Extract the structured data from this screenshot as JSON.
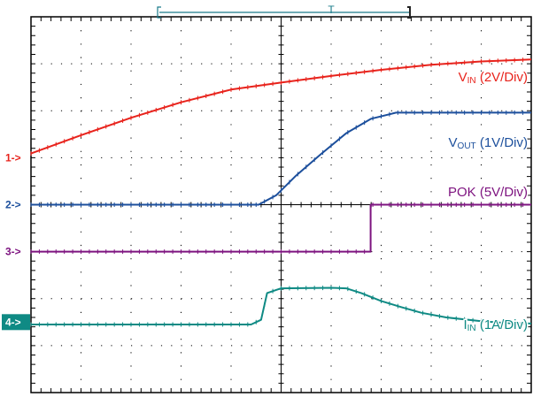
{
  "chart_data": {
    "type": "line",
    "title": "",
    "xlabel": "",
    "ylabel": "",
    "grid": true,
    "x_divisions": 10,
    "y_divisions": 8,
    "trigger_marker": "T",
    "channels": [
      {
        "marker": "1->",
        "label_main": "V",
        "label_sub": "IN",
        "label_scale": " (2V/Div)",
        "color": "#e8231c",
        "ground_div": 5.0,
        "x_div": [
          0.0,
          1.0,
          2.0,
          3.0,
          4.0,
          5.0,
          6.0,
          7.0,
          8.0,
          9.0,
          10.0
        ],
        "y_div": [
          0.09,
          0.48,
          0.85,
          1.18,
          1.45,
          1.6,
          1.74,
          1.87,
          1.98,
          2.05,
          2.09
        ]
      },
      {
        "marker": "",
        "label_main": "V",
        "label_sub": "OUT",
        "label_scale": " (1V/Div)",
        "color": "#1c4f9c",
        "ground_div": 4.0,
        "x_div": [
          0.0,
          4.55,
          4.9,
          5.3,
          5.8,
          6.3,
          6.8,
          7.3,
          10.0
        ],
        "y_div": [
          0.0,
          0.0,
          0.2,
          0.62,
          1.08,
          1.52,
          1.83,
          1.96,
          1.96
        ]
      },
      {
        "marker": "2->",
        "label_main": "POK",
        "label_sub": "",
        "label_scale": " (5V/Div)",
        "color": "#7e1480",
        "ground_div": 3.0,
        "x_div": [
          0.0,
          6.79,
          6.79,
          10.0
        ],
        "y_div": [
          0.0,
          0.0,
          1.0,
          1.0
        ]
      },
      {
        "marker": "3->",
        "label_main": "I",
        "label_sub": "IN",
        "label_scale": " (1A/Div)",
        "color": "#0f8a84",
        "ground_div": 1.5,
        "x_div": [
          0.0,
          4.4,
          4.6,
          4.72,
          5.0,
          6.0,
          6.3,
          6.6,
          7.0,
          7.4,
          7.8,
          8.3,
          9.0,
          9.5,
          10.0
        ],
        "y_div": [
          -0.05,
          -0.05,
          0.05,
          0.62,
          0.72,
          0.73,
          0.72,
          0.62,
          0.45,
          0.32,
          0.2,
          0.1,
          0.02,
          -0.02,
          -0.03
        ]
      }
    ],
    "ground_markers": [
      "1->",
      "2->",
      "3->",
      "4->"
    ]
  }
}
